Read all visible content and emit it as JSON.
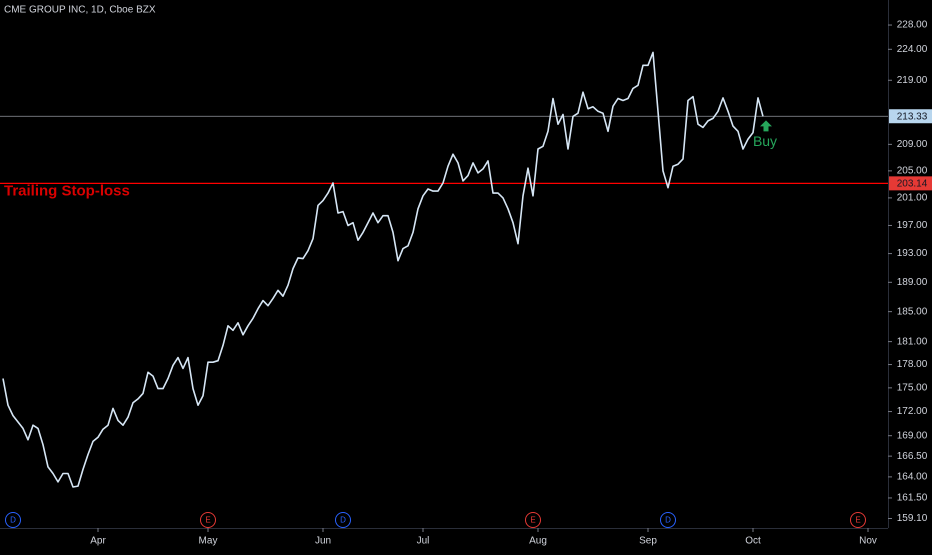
{
  "chart_data": {
    "type": "line",
    "title": "CME GROUP INC, 1D, Cboe BZX",
    "color": "#d6e6f5",
    "log_scale": true,
    "xlim": [
      -0.6,
      177
    ],
    "xticks": [
      {
        "value": 19,
        "label": "Apr"
      },
      {
        "value": 41,
        "label": "May"
      },
      {
        "value": 64,
        "label": "Jun"
      },
      {
        "value": 84,
        "label": "Jul"
      },
      {
        "value": 107,
        "label": "Aug"
      },
      {
        "value": 129,
        "label": "Sep"
      },
      {
        "value": 150,
        "label": "Oct"
      },
      {
        "value": 173,
        "label": "Nov"
      }
    ],
    "ylim": [
      158.0,
      232.2
    ],
    "yticks": [
      {
        "value": 228,
        "label": "228.00"
      },
      {
        "value": 224,
        "label": "224.00"
      },
      {
        "value": 219,
        "label": "219.00"
      },
      {
        "value": 209,
        "label": "209.00"
      },
      {
        "value": 205,
        "label": "205.00"
      },
      {
        "value": 201,
        "label": "201.00"
      },
      {
        "value": 197,
        "label": "197.00"
      },
      {
        "value": 193,
        "label": "193.00"
      },
      {
        "value": 189,
        "label": "189.00"
      },
      {
        "value": 185,
        "label": "185.00"
      },
      {
        "value": 181,
        "label": "181.00"
      },
      {
        "value": 178,
        "label": "178.00"
      },
      {
        "value": 175,
        "label": "175.00"
      },
      {
        "value": 172,
        "label": "172.00"
      },
      {
        "value": 169,
        "label": "169.00"
      },
      {
        "value": 166.5,
        "label": "166.50"
      },
      {
        "value": 164,
        "label": "164.00"
      },
      {
        "value": 161.5,
        "label": "161.50"
      },
      {
        "value": 159.1,
        "label": "159.10"
      }
    ],
    "x": [
      0,
      1,
      2,
      3,
      4,
      5,
      6,
      7,
      8,
      9,
      10,
      11,
      12,
      13,
      14,
      15,
      16,
      17,
      18,
      19,
      20,
      21,
      22,
      23,
      24,
      25,
      26,
      27,
      28,
      29,
      30,
      31,
      32,
      33,
      34,
      35,
      36,
      37,
      38,
      39,
      40,
      41,
      42,
      43,
      44,
      45,
      46,
      47,
      48,
      49,
      50,
      51,
      52,
      53,
      54,
      55,
      56,
      57,
      58,
      59,
      60,
      61,
      62,
      63,
      64,
      65,
      66,
      67,
      68,
      69,
      70,
      71,
      72,
      73,
      74,
      75,
      76,
      77,
      78,
      79,
      80,
      81,
      82,
      83,
      84,
      85,
      86,
      87,
      88,
      89,
      90,
      91,
      92,
      93,
      94,
      95,
      96,
      97,
      98,
      99,
      100,
      101,
      102,
      103,
      104,
      105,
      106,
      107,
      108,
      109,
      110,
      111,
      112,
      113,
      114,
      115,
      116,
      117,
      118,
      119,
      120,
      121,
      122,
      123,
      124,
      125,
      126,
      127,
      128,
      129,
      130,
      131,
      132,
      133,
      134,
      135,
      136,
      137,
      138,
      139,
      140,
      141,
      142,
      143,
      144,
      145,
      146,
      147,
      148,
      149,
      150,
      151,
      152
    ],
    "values": [
      176.2,
      172.8,
      171.5,
      170.7,
      169.9,
      168.5,
      170.3,
      169.9,
      167.9,
      165.2,
      164.4,
      163.4,
      164.4,
      164.4,
      162.8,
      162.9,
      164.9,
      166.7,
      168.3,
      168.8,
      169.8,
      170.3,
      172.4,
      170.9,
      170.3,
      171.3,
      173.1,
      173.6,
      174.3,
      177.0,
      176.5,
      174.9,
      174.9,
      176.2,
      177.9,
      178.9,
      177.5,
      178.9,
      174.9,
      172.8,
      174.0,
      178.3,
      178.3,
      178.5,
      180.5,
      183.1,
      182.5,
      183.5,
      181.9,
      183.1,
      184.1,
      185.4,
      186.5,
      185.8,
      186.8,
      187.9,
      187.1,
      188.6,
      190.9,
      192.4,
      192.3,
      193.4,
      195.1,
      199.9,
      200.6,
      201.7,
      203.2,
      198.8,
      199.0,
      197.0,
      197.4,
      194.9,
      196.0,
      197.4,
      198.8,
      197.4,
      198.4,
      198.4,
      196.0,
      192.0,
      193.7,
      194.1,
      196.0,
      199.4,
      201.3,
      202.3,
      202.0,
      202.0,
      203.2,
      205.7,
      207.5,
      206.2,
      203.5,
      204.3,
      206.2,
      204.7,
      205.3,
      206.5,
      201.7,
      201.7,
      201.0,
      199.4,
      197.4,
      194.4,
      201.3,
      205.4,
      201.3,
      208.3,
      208.7,
      211.0,
      216.1,
      212.1,
      213.6,
      208.3,
      213.3,
      213.8,
      217.1,
      214.5,
      214.8,
      214.1,
      213.8,
      211.0,
      214.9,
      216.1,
      215.8,
      216.1,
      217.7,
      218.2,
      221.4,
      221.4,
      223.5,
      214.1,
      205.0,
      202.5,
      205.7,
      206.0,
      206.8,
      215.8,
      216.4,
      212.1,
      211.6,
      212.6,
      213.0,
      214.1,
      216.2,
      214.1,
      211.8,
      211.0,
      208.3,
      209.8,
      210.8,
      216.2,
      213.3
    ],
    "price_lines": [
      {
        "value": 213.33,
        "color": "#9598a1",
        "label_bg": "#b8d6ee"
      },
      {
        "value": 203.14,
        "color": "#ff0000",
        "label_bg": "#e53935",
        "text": "Trailing Stop-loss"
      }
    ],
    "buy_signal": {
      "label": "Buy",
      "x": 152,
      "color": "#26a65b"
    },
    "events": [
      {
        "label": "D",
        "x": 2,
        "color": "#2962ff"
      },
      {
        "label": "E",
        "x": 41,
        "color": "#e53935"
      },
      {
        "label": "D",
        "x": 68,
        "color": "#2962ff"
      },
      {
        "label": "E",
        "x": 106,
        "color": "#e53935"
      },
      {
        "label": "D",
        "x": 133,
        "color": "#2962ff"
      },
      {
        "label": "E",
        "x": 171,
        "color": "#e53935"
      }
    ]
  }
}
